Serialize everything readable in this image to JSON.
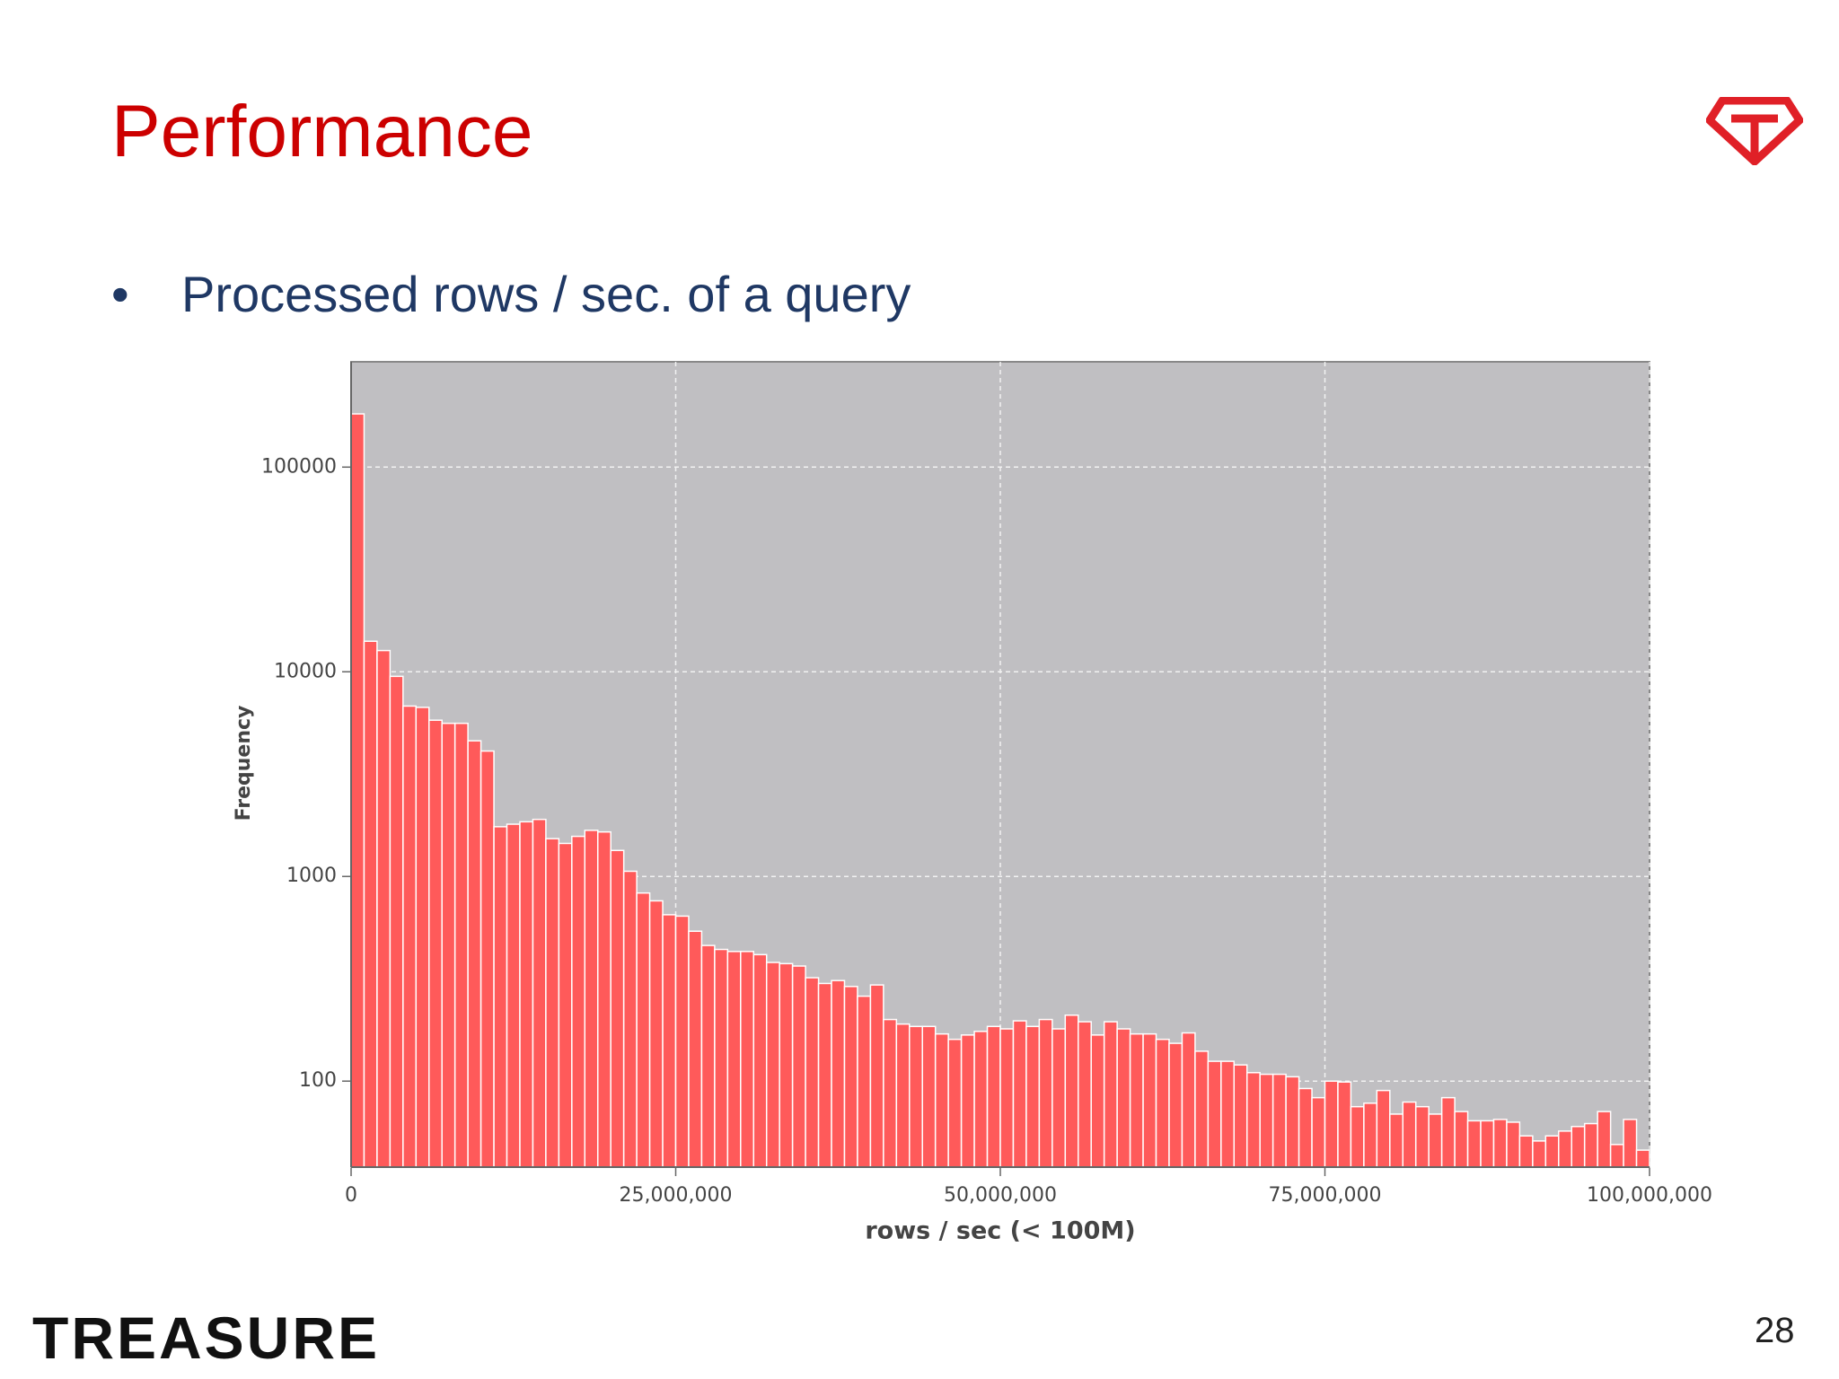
{
  "title": "Performance",
  "bullet": "Processed rows / sec. of a query",
  "footer": "TREASURE",
  "page_number": "28",
  "chart_data": {
    "type": "histogram",
    "xlabel": "rows / sec (< 100M)",
    "ylabel": "Frequency",
    "color": "#ff5a5a",
    "log_y": true,
    "grid": true,
    "bins": [
      0,
      1000000,
      2000000,
      3000000,
      4000000,
      5000000,
      6000000,
      7000000,
      8000000,
      9000000,
      10000000,
      11000000,
      12000000,
      13000000,
      14000000,
      15000000,
      16000000,
      17000000,
      18000000,
      19000000,
      20000000,
      21000000,
      22000000,
      23000000,
      24000000,
      25000000,
      26000000,
      27000000,
      28000000,
      29000000,
      30000000,
      31000000,
      32000000,
      33000000,
      34000000,
      35000000,
      36000000,
      37000000,
      38000000,
      39000000,
      40000000,
      41000000,
      42000000,
      43000000,
      44000000,
      45000000,
      46000000,
      47000000,
      48000000,
      49000000,
      50000000,
      51000000,
      52000000,
      53000000,
      54000000,
      55000000,
      56000000,
      57000000,
      58000000,
      59000000,
      60000000,
      61000000,
      62000000,
      63000000,
      64000000,
      65000000,
      66000000,
      67000000,
      68000000,
      69000000,
      70000000,
      71000000,
      72000000,
      73000000,
      74000000,
      75000000,
      76000000,
      77000000,
      78000000,
      79000000,
      80000000,
      81000000,
      82000000,
      83000000,
      84000000,
      85000000,
      86000000,
      87000000,
      88000000,
      89000000,
      90000000,
      91000000,
      92000000,
      93000000,
      94000000,
      95000000,
      96000000,
      97000000,
      98000000,
      99000000,
      100000000
    ],
    "values": [
      182000,
      14100,
      12700,
      9500,
      6800,
      6700,
      5800,
      5600,
      5600,
      4600,
      4100,
      1750,
      1800,
      1850,
      1900,
      1530,
      1450,
      1570,
      1680,
      1650,
      1340,
      1060,
      830,
      760,
      650,
      640,
      540,
      460,
      440,
      430,
      430,
      415,
      380,
      375,
      365,
      320,
      300,
      310,
      290,
      260,
      295,
      200,
      190,
      185,
      185,
      170,
      160,
      168,
      175,
      185,
      180,
      197,
      185,
      200,
      180,
      210,
      195,
      168,
      195,
      180,
      170,
      170,
      160,
      153,
      172,
      140,
      125,
      125,
      120,
      110,
      108,
      108,
      105,
      92,
      83,
      100,
      99,
      75,
      78,
      90,
      69,
      79,
      75,
      69,
      83,
      71,
      64,
      64,
      65,
      63,
      54,
      51,
      54,
      57,
      60,
      62,
      71,
      49,
      65,
      46
    ],
    "xlim": [
      0,
      100000000
    ],
    "ylim": [
      38,
      327000
    ],
    "xticks": [
      0,
      {
        "value": 25000000,
        "label": "25,000,000"
      },
      {
        "value": 50000000,
        "label": "50,000,000"
      },
      {
        "value": 75000000,
        "label": "75,000,000"
      },
      {
        "value": 100000000,
        "label": "100,000,000"
      }
    ],
    "yticks": [
      100,
      1000,
      10000,
      100000
    ]
  }
}
